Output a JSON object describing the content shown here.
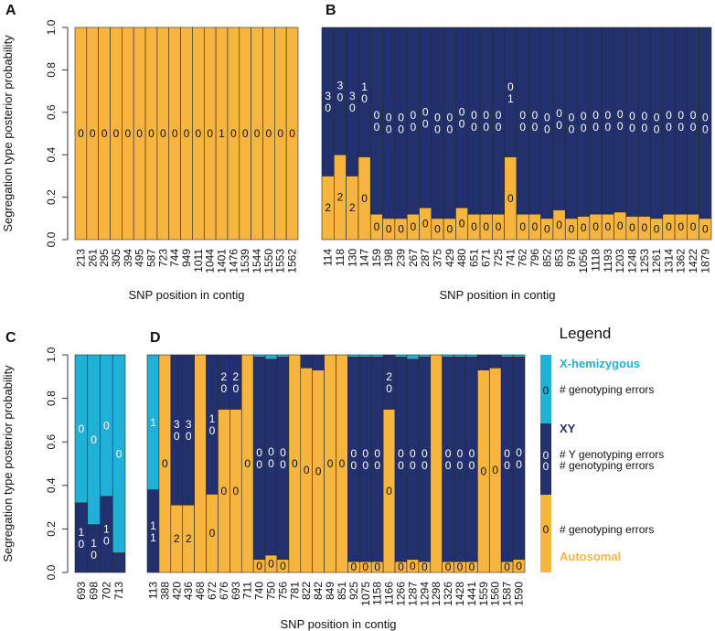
{
  "colors": {
    "autosomal": "#F5B53F",
    "xy": "#22306E",
    "xhemi": "#21B1D6",
    "xy_label": "#22306E",
    "xhemi_label": "#21B1D6",
    "autosomal_label": "#F5B53F",
    "axis": "#333333"
  },
  "shared": {
    "ylabel": "Segregation type posterior probability",
    "xlabel": "SNP position in contig",
    "yticks": [
      "0.0",
      "0.2",
      "0.4",
      "0.6",
      "0.8",
      "1.0"
    ]
  },
  "chart_data": [
    {
      "panel": "A",
      "type": "bar",
      "stacked": true,
      "ylim": [
        0,
        1
      ],
      "categories": [
        "213",
        "261",
        "295",
        "305",
        "394",
        "495",
        "587",
        "723",
        "744",
        "949",
        "1011",
        "1044",
        "1401",
        "1476",
        "1539",
        "1544",
        "1550",
        "1553",
        "1562"
      ],
      "series": [
        {
          "name": "Autosomal",
          "values": [
            1,
            1,
            1,
            1,
            1,
            1,
            1,
            1,
            1,
            1,
            1,
            1,
            1,
            1,
            1,
            1,
            1,
            1,
            1
          ]
        }
      ],
      "annotations": [
        {
          "series": "Autosomal",
          "labels": [
            "0",
            "0",
            "0",
            "0",
            "0",
            "0",
            "0",
            "0",
            "0",
            "0",
            "0",
            "0",
            "1",
            "0",
            "0",
            "0",
            "0",
            "0",
            "0"
          ]
        }
      ]
    },
    {
      "panel": "B",
      "type": "bar",
      "stacked": true,
      "ylim": [
        0,
        1
      ],
      "categories": [
        "114",
        "118",
        "130",
        "147",
        "159",
        "198",
        "239",
        "267",
        "287",
        "375",
        "429",
        "480",
        "651",
        "671",
        "725",
        "741",
        "762",
        "796",
        "852",
        "853",
        "978",
        "1056",
        "1118",
        "1193",
        "1203",
        "1248",
        "1253",
        "1261",
        "1314",
        "1362",
        "1422",
        "1879"
      ],
      "series": [
        {
          "name": "Autosomal",
          "values": [
            0.3,
            0.4,
            0.3,
            0.39,
            0.12,
            0.1,
            0.1,
            0.12,
            0.15,
            0.1,
            0.1,
            0.15,
            0.12,
            0.12,
            0.12,
            0.39,
            0.12,
            0.12,
            0.1,
            0.14,
            0.1,
            0.11,
            0.12,
            0.12,
            0.13,
            0.11,
            0.11,
            0.1,
            0.12,
            0.12,
            0.12,
            0.1
          ]
        },
        {
          "name": "XY",
          "values": [
            0.7,
            0.6,
            0.7,
            0.61,
            0.88,
            0.9,
            0.9,
            0.88,
            0.85,
            0.9,
            0.9,
            0.85,
            0.88,
            0.88,
            0.88,
            0.61,
            0.88,
            0.88,
            0.9,
            0.86,
            0.9,
            0.89,
            0.88,
            0.88,
            0.87,
            0.89,
            0.89,
            0.9,
            0.88,
            0.88,
            0.88,
            0.9
          ]
        }
      ],
      "annotations": [
        {
          "series": "Autosomal",
          "labels": [
            "2",
            "2",
            "2",
            "0",
            "0",
            "0",
            "0",
            "0",
            "0",
            "0",
            "0",
            "0",
            "0",
            "0",
            "0",
            "0",
            "0",
            "0",
            "0",
            "0",
            "0",
            "0",
            "0",
            "0",
            "0",
            "0",
            "0",
            "0",
            "0",
            "0",
            "0",
            "0"
          ]
        },
        {
          "series": "XY",
          "labels": [
            [
              "3",
              "0"
            ],
            [
              "3",
              "0"
            ],
            [
              "3",
              "0"
            ],
            [
              "1",
              "0"
            ],
            [
              "0",
              "0"
            ],
            [
              "0",
              "0"
            ],
            [
              "0",
              "0"
            ],
            [
              "0",
              "0"
            ],
            [
              "0",
              "0"
            ],
            [
              "0",
              "0"
            ],
            [
              "0",
              "0"
            ],
            [
              "0",
              "0"
            ],
            [
              "0",
              "0"
            ],
            [
              "0",
              "0"
            ],
            [
              "0",
              "0"
            ],
            [
              "0",
              "1"
            ],
            [
              "0",
              "0"
            ],
            [
              "0",
              "0"
            ],
            [
              "0",
              "0"
            ],
            [
              "0",
              "0"
            ],
            [
              "0",
              "0"
            ],
            [
              "0",
              "0"
            ],
            [
              "0",
              "0"
            ],
            [
              "0",
              "0"
            ],
            [
              "0",
              "0"
            ],
            [
              "0",
              "0"
            ],
            [
              "0",
              "0"
            ],
            [
              "0",
              "0"
            ],
            [
              "0",
              "0"
            ],
            [
              "0",
              "0"
            ],
            [
              "0",
              "0"
            ],
            [
              "0",
              "0"
            ]
          ]
        }
      ]
    },
    {
      "panel": "C",
      "type": "bar",
      "stacked": true,
      "ylim": [
        0,
        1
      ],
      "categories": [
        "693",
        "698",
        "702",
        "713"
      ],
      "series": [
        {
          "name": "XY",
          "values": [
            0.32,
            0.22,
            0.35,
            0.09
          ]
        },
        {
          "name": "X-hemizygous",
          "values": [
            0.68,
            0.78,
            0.65,
            0.91
          ]
        }
      ],
      "annotations": [
        {
          "series": "XY",
          "labels": [
            [
              "1",
              "0"
            ],
            [
              "1",
              "0"
            ],
            [
              "1",
              "0"
            ],
            []
          ]
        },
        {
          "series": "X-hemizygous",
          "labels": [
            "0",
            "0",
            "0",
            "0"
          ]
        }
      ]
    },
    {
      "panel": "D",
      "type": "bar",
      "stacked": true,
      "ylim": [
        0,
        1
      ],
      "categories": [
        "113",
        "388",
        "420",
        "436",
        "468",
        "672",
        "676",
        "693",
        "711",
        "740",
        "750",
        "756",
        "781",
        "822",
        "842",
        "849",
        "851",
        "925",
        "1075",
        "1158",
        "1166",
        "1266",
        "1287",
        "1294",
        "1298",
        "1326",
        "1428",
        "1441",
        "1559",
        "1560",
        "1587",
        "1590"
      ],
      "series": [
        {
          "name": "Autosomal",
          "values": [
            0,
            1,
            0.31,
            0.31,
            1,
            0.36,
            0.75,
            0.75,
            1,
            0.06,
            0.08,
            0.06,
            1,
            0.94,
            0.93,
            1,
            1,
            0.05,
            0.05,
            0.05,
            0.75,
            0.05,
            0.06,
            0.05,
            1,
            0.05,
            0.05,
            0.05,
            0.93,
            0.94,
            0.05,
            0.06
          ]
        },
        {
          "name": "XY",
          "values": [
            0.38,
            0,
            0.69,
            0.69,
            0,
            0.64,
            0.25,
            0.25,
            0,
            0.93,
            0.9,
            0.93,
            0,
            0.06,
            0.07,
            0,
            0,
            0.94,
            0.94,
            0.94,
            0.25,
            0.94,
            0.92,
            0.94,
            0,
            0.94,
            0.94,
            0.94,
            0.07,
            0.06,
            0.94,
            0.93
          ]
        },
        {
          "name": "X-hemizygous",
          "values": [
            0.62,
            0,
            0,
            0,
            0,
            0,
            0,
            0,
            0,
            0.01,
            0.02,
            0.01,
            0,
            0,
            0,
            0,
            0,
            0.01,
            0.01,
            0.01,
            0,
            0.01,
            0.02,
            0.01,
            0,
            0.01,
            0.01,
            0.01,
            0,
            0,
            0.01,
            0.01
          ]
        }
      ],
      "annotations": [
        {
          "series": "Autosomal",
          "labels": [
            "",
            "0",
            "2",
            "2",
            "",
            "0",
            "0",
            "0",
            "0",
            "0",
            "0",
            "0",
            "0",
            "0",
            "0",
            "0",
            "0",
            "0",
            "0",
            "0",
            "0",
            "0",
            "0",
            "0",
            "",
            "0",
            "0",
            "0",
            "0",
            "0",
            "0",
            "0"
          ]
        },
        {
          "series": "XY",
          "labels": [
            [
              "1",
              "1"
            ],
            [],
            [
              "3",
              "0"
            ],
            [
              "3",
              "0"
            ],
            [],
            [
              "1",
              "0"
            ],
            [
              "2",
              "0"
            ],
            [
              "2",
              "0"
            ],
            [],
            [
              "0",
              "0"
            ],
            [
              "0",
              "0"
            ],
            [
              "0",
              "0"
            ],
            [],
            [],
            [],
            [],
            [],
            [
              "0",
              "0"
            ],
            [
              "0",
              "0"
            ],
            [
              "0",
              "0"
            ],
            [
              "2",
              "0"
            ],
            [
              "0",
              "0"
            ],
            [
              "0",
              "0"
            ],
            [
              "0",
              "0"
            ],
            [],
            [
              "0",
              "0"
            ],
            [
              "0",
              "0"
            ],
            [
              "0",
              "0"
            ],
            [],
            [],
            [
              "0",
              "0"
            ],
            [
              "0",
              "0"
            ]
          ]
        },
        {
          "series": "X-hemizygous",
          "labels": [
            "1",
            "",
            "",
            "",
            "",
            "",
            "",
            "",
            "",
            "",
            "",
            "",
            "",
            "",
            "",
            "",
            "",
            "",
            "",
            "",
            "",
            "",
            "",
            "",
            "",
            "",
            "",
            "",
            "",
            "",
            "",
            ""
          ]
        }
      ]
    }
  ],
  "legend": {
    "title": "Legend",
    "items": [
      {
        "name": "X-hemizygous",
        "color_key": "xhemi",
        "annotations": [
          {
            "badge": [
              "0"
            ],
            "text": "# genotyping errors"
          }
        ]
      },
      {
        "name": "XY",
        "color_key": "xy",
        "annotations": [
          {
            "badge": [
              "0",
              "0"
            ],
            "text": "# Y genotyping errors",
            "text2": "# genotyping errors"
          }
        ]
      },
      {
        "name": "Autosomal",
        "color_key": "autosomal",
        "annotations": [
          {
            "badge": [
              "0"
            ],
            "text": "# genotyping errors"
          }
        ]
      }
    ]
  }
}
